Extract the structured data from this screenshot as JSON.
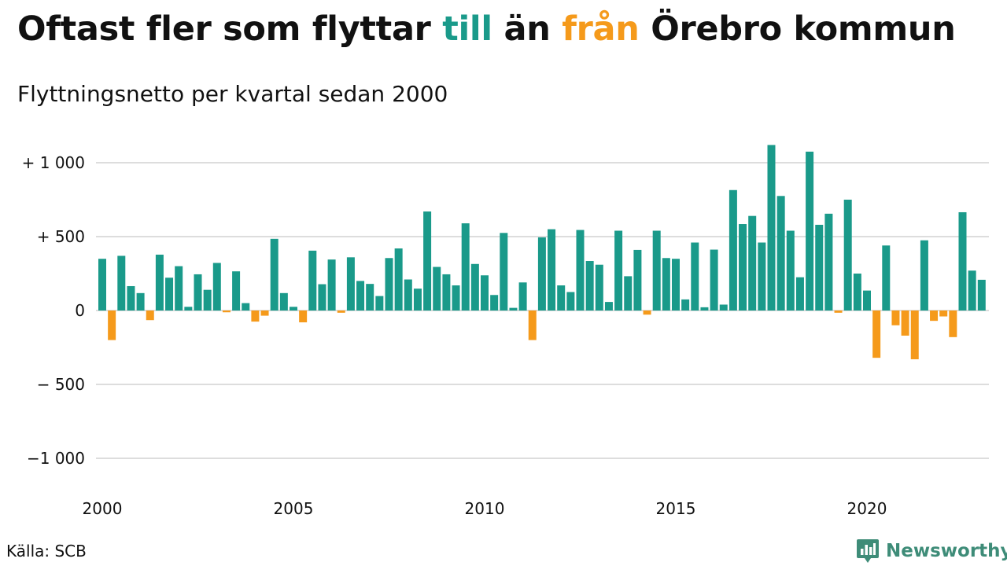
{
  "title": {
    "part1": "Oftast fler som flyttar ",
    "till": "till",
    "part2": " än ",
    "fran": "från",
    "part3": " Örebro kommun"
  },
  "subtitle": "Flyttningsnetto per kvartal sedan 2000",
  "source": "Källa: SCB",
  "brand": "Newsworthy",
  "colors": {
    "positive": "#1a9a8a",
    "negative": "#f59a1b",
    "grid": "#dddddd",
    "brand": "#3e8c78"
  },
  "chart_data": {
    "type": "bar",
    "title": "Oftast fler som flyttar till än från Örebro kommun",
    "subtitle": "Flyttningsnetto per kvartal sedan 2000",
    "x_start": "2000-Q1",
    "frequency": "quarterly",
    "xlim": [
      2000,
      2023.75
    ],
    "ylim": [
      -1000,
      1000
    ],
    "y_ticks": [
      1000,
      500,
      0,
      -500,
      -1000
    ],
    "y_tick_labels": [
      "+ 1 000",
      "+   500",
      "0",
      "− 500",
      "−1 000"
    ],
    "x_ticks": [
      2000,
      2005,
      2010,
      2015,
      2020
    ],
    "x_tick_labels": [
      "2000",
      "2005",
      "2010",
      "2015",
      "2020"
    ],
    "grid": true,
    "values": [
      350,
      -200,
      370,
      165,
      118,
      -65,
      378,
      222,
      300,
      25,
      245,
      140,
      322,
      -12,
      265,
      50,
      -75,
      -35,
      485,
      118,
      25,
      -80,
      405,
      178,
      345,
      -15,
      360,
      200,
      180,
      98,
      355,
      420,
      210,
      148,
      670,
      295,
      245,
      170,
      590,
      315,
      238,
      105,
      525,
      18,
      190,
      -200,
      495,
      550,
      170,
      125,
      545,
      335,
      310,
      58,
      540,
      232,
      410,
      -28,
      540,
      355,
      350,
      75,
      460,
      22,
      412,
      40,
      815,
      585,
      640,
      460,
      1120,
      775,
      540,
      225,
      1075,
      580,
      655,
      -15,
      750,
      250,
      135,
      -320,
      440,
      -100,
      -170,
      -330,
      475,
      -70,
      -40,
      -180,
      665,
      270,
      208
    ]
  }
}
